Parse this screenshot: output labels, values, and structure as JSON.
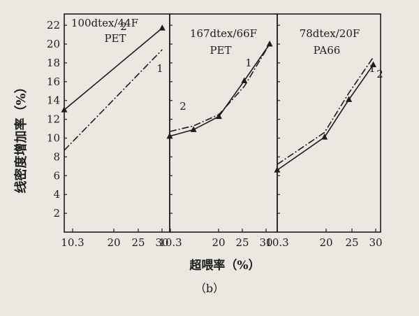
{
  "figure": {
    "ylabel": "线密度增加率（%）",
    "xlabel": "超喂率（%）",
    "caption": "（b）"
  },
  "chart_data": [
    {
      "type": "line",
      "title": "100dtex/44F",
      "subtitle": "PET",
      "x_tick_labels": [
        "10.3",
        "20",
        "25",
        "30"
      ],
      "y_ticks": [
        2,
        4,
        6,
        8,
        10,
        12,
        14,
        16,
        18,
        20,
        22
      ],
      "ylim": [
        0,
        23.2
      ],
      "xlim": [
        10.3,
        31.5
      ],
      "series": [
        {
          "name": "1",
          "style": "dash-dot",
          "x": [
            10.3,
            30
          ],
          "y": [
            8.7,
            19.4
          ]
        },
        {
          "name": "2",
          "style": "solid-marker",
          "x": [
            10.3,
            30
          ],
          "y": [
            13.0,
            21.7
          ]
        }
      ]
    },
    {
      "type": "line",
      "title": "167dtex/66F",
      "subtitle": "PET",
      "x_tick_labels": [
        "10.3",
        "20",
        "25",
        "30"
      ],
      "ylim": [
        0,
        23.2
      ],
      "xlim": [
        10.3,
        31.5
      ],
      "series": [
        {
          "name": "1",
          "style": "solid",
          "x": [
            10.3,
            15,
            20,
            25,
            30
          ],
          "y": [
            10.2,
            10.9,
            12.3,
            16.1,
            20.0
          ]
        },
        {
          "name": "2",
          "style": "dash-dot",
          "x": [
            10.3,
            15,
            20,
            25,
            30
          ],
          "y": [
            10.7,
            11.3,
            12.5,
            15.5,
            20.0
          ]
        }
      ]
    },
    {
      "type": "line",
      "title": "78dtex/20F",
      "subtitle": "PA66",
      "x_tick_labels": [
        "10.3",
        "20",
        "25",
        "30"
      ],
      "ylim": [
        0,
        23.2
      ],
      "xlim": [
        10.3,
        31.5
      ],
      "series": [
        {
          "name": "1",
          "style": "dash-dot",
          "x": [
            10.3,
            20,
            25,
            30
          ],
          "y": [
            7.2,
            10.6,
            14.8,
            18.6
          ]
        },
        {
          "name": "2",
          "style": "solid-marker",
          "x": [
            10.3,
            20,
            25,
            30
          ],
          "y": [
            6.6,
            10.1,
            14.1,
            17.8
          ]
        }
      ]
    }
  ]
}
